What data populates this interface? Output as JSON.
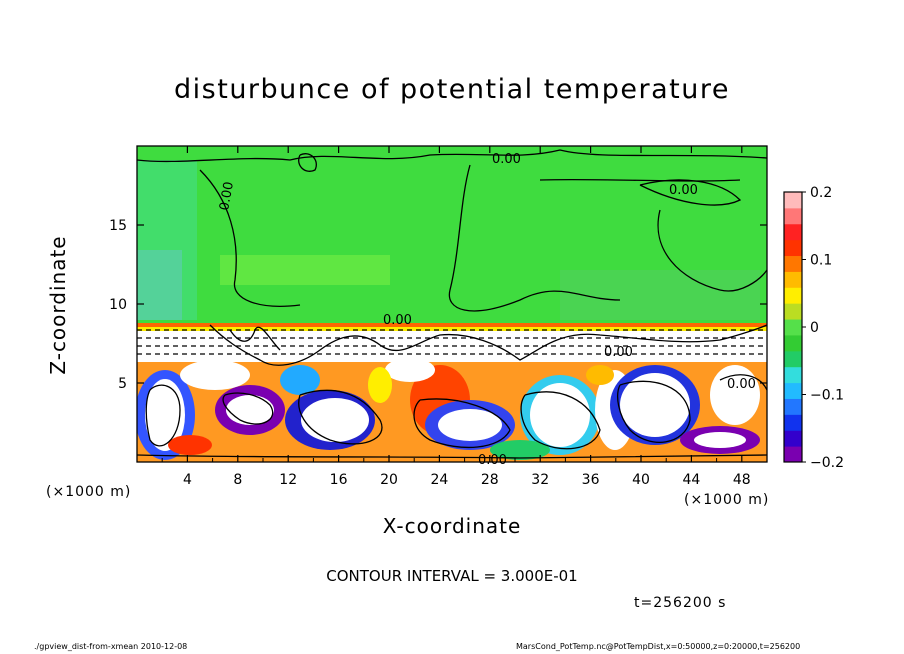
{
  "chart_data": {
    "type": "heatmap",
    "title": "disturbunce of potential temperature",
    "xlabel": "X-coordinate",
    "ylabel": "Z-coordinate",
    "x_unit": "(×1000 m)",
    "x_ticks": [
      4,
      8,
      12,
      16,
      20,
      24,
      28,
      32,
      36,
      40,
      44,
      48
    ],
    "y_ticks": [
      5,
      10,
      15
    ],
    "xlim": [
      0,
      50
    ],
    "ylim": [
      0,
      20
    ],
    "colorbar": {
      "ticks": [
        "0.2",
        "0.1",
        "0",
        "−0.1",
        "−0.2"
      ],
      "tick_values": [
        0.2,
        0.1,
        0,
        -0.1,
        -0.2
      ],
      "range": [
        -0.2,
        0.2
      ],
      "colors": [
        "#7a00b0",
        "#3300cc",
        "#1133ee",
        "#2277ff",
        "#22bbff",
        "#33dddd",
        "#22cc66",
        "#33cc33",
        "#55e04a",
        "#bbdd22",
        "#ffee00",
        "#ffbb00",
        "#ff7700",
        "#ff3300",
        "#ff2222",
        "#ff7777",
        "#ffbbbb"
      ]
    },
    "contour_labels": [
      "0.00",
      "0.00",
      "0.00",
      "0.00",
      "0.00",
      "0.00",
      "0.00"
    ],
    "contour_interval": "CONTOUR INTERVAL = 3.000E-01",
    "time": "t=256200 s"
  },
  "footer": {
    "left": "./gpview_dist-from-xmean  2010-12-08",
    "right": "MarsCond_PotTemp.nc@PotTempDist,x=0:50000,z=0:20000,t=256200"
  }
}
